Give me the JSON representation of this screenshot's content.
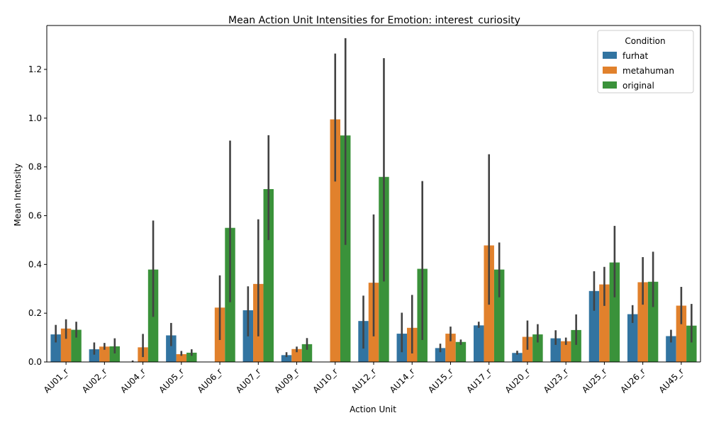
{
  "chart_data": {
    "type": "bar",
    "title": "Mean Action Unit Intensities for Emotion: interest_curiosity",
    "xlabel": "Action Unit",
    "ylabel": "Mean Intensity",
    "ylim": [
      0,
      1.38
    ],
    "yticks": [
      "0.0",
      "0.2",
      "0.4",
      "0.6",
      "0.8",
      "1.0",
      "1.2"
    ],
    "grid": false,
    "legend": {
      "title": "Condition",
      "placement": "top-right"
    },
    "categories": [
      "AU01_r",
      "AU02_r",
      "AU04_r",
      "AU05_r",
      "AU06_r",
      "AU07_r",
      "AU09_r",
      "AU10_r",
      "AU12_r",
      "AU14_r",
      "AU15_r",
      "AU17_r",
      "AU20_r",
      "AU23_r",
      "AU25_r",
      "AU26_r",
      "AU45_r"
    ],
    "series": [
      {
        "name": "furhat",
        "color": "#3274a1",
        "values": [
          0.113,
          0.052,
          0.0,
          0.109,
          0.0,
          0.212,
          0.028,
          0.0,
          0.168,
          0.116,
          0.057,
          0.15,
          0.037,
          0.097,
          0.291,
          0.196,
          0.106
        ],
        "ci_low": [
          0.08,
          0.03,
          0.0,
          0.065,
          0.0,
          0.105,
          0.02,
          0.0,
          0.055,
          0.04,
          0.04,
          0.14,
          0.03,
          0.07,
          0.21,
          0.16,
          0.08
        ],
        "ci_high": [
          0.152,
          0.08,
          0.006,
          0.16,
          0.0,
          0.31,
          0.04,
          0.0,
          0.272,
          0.202,
          0.075,
          0.165,
          0.046,
          0.13,
          0.372,
          0.233,
          0.132
        ]
      },
      {
        "name": "metahuman",
        "color": "#e1812c",
        "values": [
          0.137,
          0.063,
          0.06,
          0.032,
          0.223,
          0.32,
          0.053,
          0.995,
          0.325,
          0.14,
          0.116,
          0.478,
          0.103,
          0.085,
          0.318,
          0.327,
          0.231
        ],
        "ci_low": [
          0.095,
          0.05,
          0.02,
          0.025,
          0.09,
          0.105,
          0.04,
          0.74,
          0.105,
          0.035,
          0.085,
          0.235,
          0.05,
          0.07,
          0.23,
          0.235,
          0.155
        ],
        "ci_high": [
          0.175,
          0.078,
          0.115,
          0.045,
          0.355,
          0.585,
          0.063,
          1.265,
          0.605,
          0.275,
          0.145,
          0.852,
          0.17,
          0.1,
          0.39,
          0.43,
          0.308
        ]
      },
      {
        "name": "original",
        "color": "#3a923a",
        "values": [
          0.132,
          0.064,
          0.379,
          0.038,
          0.55,
          0.709,
          0.073,
          0.929,
          0.759,
          0.382,
          0.082,
          0.379,
          0.113,
          0.131,
          0.408,
          0.329,
          0.149
        ],
        "ci_low": [
          0.1,
          0.035,
          0.185,
          0.025,
          0.245,
          0.5,
          0.05,
          0.48,
          0.33,
          0.09,
          0.07,
          0.265,
          0.08,
          0.07,
          0.265,
          0.225,
          0.08
        ],
        "ci_high": [
          0.165,
          0.097,
          0.58,
          0.052,
          0.908,
          0.93,
          0.098,
          1.328,
          1.246,
          0.742,
          0.092,
          0.49,
          0.155,
          0.195,
          0.558,
          0.452,
          0.238
        ]
      }
    ]
  }
}
